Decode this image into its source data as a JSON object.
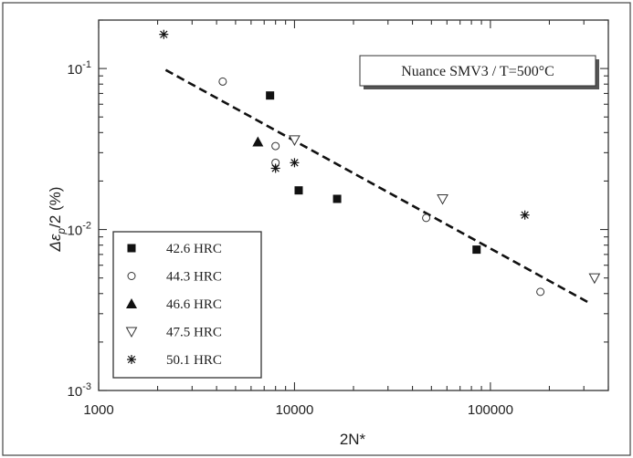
{
  "chart_data": {
    "type": "scatter",
    "title": "",
    "annotation": "Nuance SMV3 / T=500°C",
    "xlabel": "2N*",
    "ylabel_main": "Δε",
    "ylabel_sub": "p",
    "ylabel_rest": "/2 (%)",
    "xscale": "log",
    "yscale": "log",
    "xlim": [
      1000,
      400000
    ],
    "ylim": [
      0.001,
      0.2
    ],
    "x_ticks": [
      1000,
      10000,
      100000
    ],
    "x_tick_labels": [
      "1000",
      "10000",
      "100000"
    ],
    "y_ticks": [
      0.001,
      0.01,
      0.1
    ],
    "y_tick_base": "10",
    "y_tick_exponents": [
      "-3",
      "-2",
      "-1"
    ],
    "grid": false,
    "legend_position": "bottom-left",
    "series": [
      {
        "name": "42.6 HRC",
        "marker": "filled-square",
        "points": [
          [
            7500,
            0.068
          ],
          [
            10500,
            0.0175
          ],
          [
            16500,
            0.0155
          ],
          [
            85000,
            0.0075
          ]
        ]
      },
      {
        "name": "44.3 HRC",
        "marker": "open-circle",
        "points": [
          [
            4300,
            0.083
          ],
          [
            8000,
            0.033
          ],
          [
            8000,
            0.026
          ],
          [
            47000,
            0.0118
          ],
          [
            180000,
            0.0041
          ]
        ]
      },
      {
        "name": "46.6 HRC",
        "marker": "filled-triangle",
        "points": [
          [
            6500,
            0.035
          ]
        ]
      },
      {
        "name": "47.5 HRC",
        "marker": "open-triangle-down",
        "points": [
          [
            10000,
            0.036
          ],
          [
            57000,
            0.0155
          ],
          [
            340000,
            0.005
          ]
        ]
      },
      {
        "name": "50.1 HRC",
        "marker": "asterisk",
        "points": [
          [
            2150,
            0.163
          ],
          [
            8000,
            0.024
          ],
          [
            10000,
            0.026
          ],
          [
            150000,
            0.0123
          ]
        ]
      }
    ],
    "fit_line": {
      "style": "dashed",
      "points": [
        [
          2200,
          0.098
        ],
        [
          320000,
          0.0035
        ]
      ]
    }
  }
}
